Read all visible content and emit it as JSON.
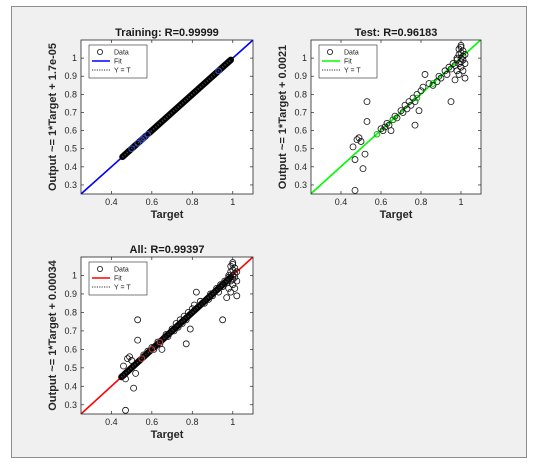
{
  "chart_data": [
    {
      "type": "scatter",
      "title": "Training: R=0.99999",
      "xlabel": "Target",
      "ylabel": "Output ~= 1*Target + 1.7e-05",
      "xlim": [
        0.25,
        1.1
      ],
      "ylim": [
        0.25,
        1.1
      ],
      "xticks": [
        "0.4",
        "0.6",
        "0.8",
        "1"
      ],
      "yticks": [
        "0.3",
        "0.4",
        "0.5",
        "0.6",
        "0.7",
        "0.8",
        "0.9",
        "1"
      ],
      "legend": [
        "Data",
        "Fit",
        "Y = T"
      ],
      "legend_position": "top-left",
      "fit_color": "#0000ff",
      "fit": {
        "slope": 1,
        "intercept": 1.7e-05
      },
      "dense_segments": [
        [
          0.455,
          0.57
        ],
        [
          0.585,
          0.99
        ]
      ],
      "highlight_color": "#3c4fd6",
      "highlight_points": [
        [
          0.5,
          0.5
        ],
        [
          0.53,
          0.53
        ],
        [
          0.55,
          0.55
        ],
        [
          0.56,
          0.56
        ],
        [
          0.58,
          0.58
        ],
        [
          0.93,
          0.93
        ]
      ],
      "points": []
    },
    {
      "type": "scatter",
      "title": "Test: R=0.96183",
      "xlabel": "Target",
      "ylabel": "Output ~= 1*Target + 0.0021",
      "xlim": [
        0.25,
        1.1
      ],
      "ylim": [
        0.25,
        1.1
      ],
      "xticks": [
        "0.4",
        "0.6",
        "0.8",
        "1"
      ],
      "yticks": [
        "0.3",
        "0.4",
        "0.5",
        "0.6",
        "0.7",
        "0.8",
        "0.9",
        "1"
      ],
      "legend": [
        "Data",
        "Fit",
        "Y = T"
      ],
      "legend_position": "top-left",
      "fit_color": "#00ff00",
      "fit": {
        "slope": 1,
        "intercept": 0.0021
      },
      "dense_segments": [],
      "highlight_color": "#00b000",
      "highlight_points": [
        [
          0.58,
          0.58
        ],
        [
          0.66,
          0.66
        ],
        [
          0.78,
          0.78
        ],
        [
          0.86,
          0.86
        ]
      ],
      "points": [
        [
          0.47,
          0.27
        ],
        [
          0.46,
          0.51
        ],
        [
          0.47,
          0.44
        ],
        [
          0.48,
          0.55
        ],
        [
          0.49,
          0.56
        ],
        [
          0.5,
          0.54
        ],
        [
          0.51,
          0.39
        ],
        [
          0.53,
          0.65
        ],
        [
          0.53,
          0.76
        ],
        [
          0.52,
          0.47
        ],
        [
          0.6,
          0.61
        ],
        [
          0.61,
          0.6
        ],
        [
          0.62,
          0.62
        ],
        [
          0.63,
          0.64
        ],
        [
          0.64,
          0.63
        ],
        [
          0.65,
          0.6
        ],
        [
          0.66,
          0.66
        ],
        [
          0.67,
          0.68
        ],
        [
          0.68,
          0.67
        ],
        [
          0.7,
          0.71
        ],
        [
          0.71,
          0.7
        ],
        [
          0.72,
          0.74
        ],
        [
          0.73,
          0.72
        ],
        [
          0.74,
          0.76
        ],
        [
          0.75,
          0.74
        ],
        [
          0.76,
          0.78
        ],
        [
          0.77,
          0.76
        ],
        [
          0.78,
          0.8
        ],
        [
          0.79,
          0.71
        ],
        [
          0.77,
          0.63
        ],
        [
          0.8,
          0.82
        ],
        [
          0.81,
          0.84
        ],
        [
          0.82,
          0.91
        ],
        [
          0.84,
          0.86
        ],
        [
          0.86,
          0.85
        ],
        [
          0.88,
          0.87
        ],
        [
          0.89,
          0.9
        ],
        [
          0.9,
          0.89
        ],
        [
          0.92,
          0.93
        ],
        [
          0.93,
          0.91
        ],
        [
          0.94,
          0.95
        ],
        [
          0.95,
          0.94
        ],
        [
          0.95,
          0.76
        ],
        [
          0.96,
          0.97
        ],
        [
          0.97,
          0.96
        ],
        [
          0.97,
          0.88
        ],
        [
          0.98,
          0.99
        ],
        [
          0.98,
          0.93
        ],
        [
          0.98,
          1.0
        ],
        [
          0.99,
          0.97
        ],
        [
          0.99,
          1.02
        ],
        [
          0.99,
          0.91
        ],
        [
          1.0,
          1.0
        ],
        [
          1.0,
          0.98
        ],
        [
          1.0,
          1.03
        ],
        [
          1.0,
          0.95
        ],
        [
          1.01,
          1.01
        ],
        [
          1.01,
          0.99
        ],
        [
          1.01,
          1.04
        ],
        [
          1.01,
          0.93
        ],
        [
          1.02,
          1.02
        ],
        [
          1.02,
          0.97
        ],
        [
          1.0,
          1.07
        ],
        [
          1.02,
          0.89
        ],
        [
          0.99,
          1.05
        ],
        [
          1.0,
          1.06
        ]
      ]
    },
    {
      "type": "scatter",
      "title": "All: R=0.99397",
      "xlabel": "Target",
      "ylabel": "Output ~= 1*Target + 0.00034",
      "xlim": [
        0.25,
        1.1
      ],
      "ylim": [
        0.25,
        1.1
      ],
      "xticks": [
        "0.4",
        "0.6",
        "0.8",
        "1"
      ],
      "yticks": [
        "0.3",
        "0.4",
        "0.5",
        "0.6",
        "0.7",
        "0.8",
        "0.9",
        "1"
      ],
      "legend": [
        "Data",
        "Fit",
        "Y = T"
      ],
      "legend_position": "top-left",
      "fit_color": "#ff0000",
      "fit": {
        "slope": 1,
        "intercept": 0.00034
      },
      "dense_segments": [
        [
          0.45,
          0.99
        ]
      ],
      "highlight_color": "#d04040",
      "highlight_points": [
        [
          0.55,
          0.55
        ],
        [
          0.6,
          0.6
        ],
        [
          0.64,
          0.64
        ]
      ],
      "points": [
        [
          0.47,
          0.27
        ],
        [
          0.46,
          0.51
        ],
        [
          0.47,
          0.44
        ],
        [
          0.48,
          0.55
        ],
        [
          0.49,
          0.56
        ],
        [
          0.5,
          0.54
        ],
        [
          0.51,
          0.39
        ],
        [
          0.53,
          0.65
        ],
        [
          0.53,
          0.76
        ],
        [
          0.52,
          0.47
        ],
        [
          0.56,
          0.57
        ],
        [
          0.58,
          0.59
        ],
        [
          0.6,
          0.61
        ],
        [
          0.61,
          0.6
        ],
        [
          0.62,
          0.62
        ],
        [
          0.63,
          0.64
        ],
        [
          0.64,
          0.63
        ],
        [
          0.65,
          0.6
        ],
        [
          0.66,
          0.66
        ],
        [
          0.67,
          0.68
        ],
        [
          0.68,
          0.67
        ],
        [
          0.7,
          0.71
        ],
        [
          0.71,
          0.7
        ],
        [
          0.72,
          0.74
        ],
        [
          0.73,
          0.72
        ],
        [
          0.74,
          0.76
        ],
        [
          0.75,
          0.74
        ],
        [
          0.76,
          0.78
        ],
        [
          0.77,
          0.76
        ],
        [
          0.78,
          0.8
        ],
        [
          0.79,
          0.71
        ],
        [
          0.77,
          0.63
        ],
        [
          0.8,
          0.82
        ],
        [
          0.81,
          0.84
        ],
        [
          0.82,
          0.91
        ],
        [
          0.84,
          0.86
        ],
        [
          0.86,
          0.85
        ],
        [
          0.88,
          0.87
        ],
        [
          0.89,
          0.9
        ],
        [
          0.9,
          0.89
        ],
        [
          0.92,
          0.93
        ],
        [
          0.93,
          0.91
        ],
        [
          0.94,
          0.95
        ],
        [
          0.95,
          0.94
        ],
        [
          0.95,
          0.76
        ],
        [
          0.96,
          0.97
        ],
        [
          0.97,
          0.96
        ],
        [
          0.97,
          0.88
        ],
        [
          0.98,
          0.99
        ],
        [
          0.98,
          0.93
        ],
        [
          0.98,
          1.0
        ],
        [
          0.99,
          0.97
        ],
        [
          0.99,
          1.02
        ],
        [
          0.99,
          0.91
        ],
        [
          1.0,
          1.0
        ],
        [
          1.0,
          0.98
        ],
        [
          1.0,
          1.03
        ],
        [
          1.0,
          0.95
        ],
        [
          1.01,
          1.01
        ],
        [
          1.01,
          0.99
        ],
        [
          1.01,
          1.04
        ],
        [
          1.01,
          0.93
        ],
        [
          1.02,
          1.02
        ],
        [
          1.02,
          0.97
        ],
        [
          1.0,
          1.07
        ],
        [
          1.02,
          0.89
        ],
        [
          0.99,
          1.05
        ],
        [
          1.0,
          1.06
        ]
      ]
    }
  ]
}
